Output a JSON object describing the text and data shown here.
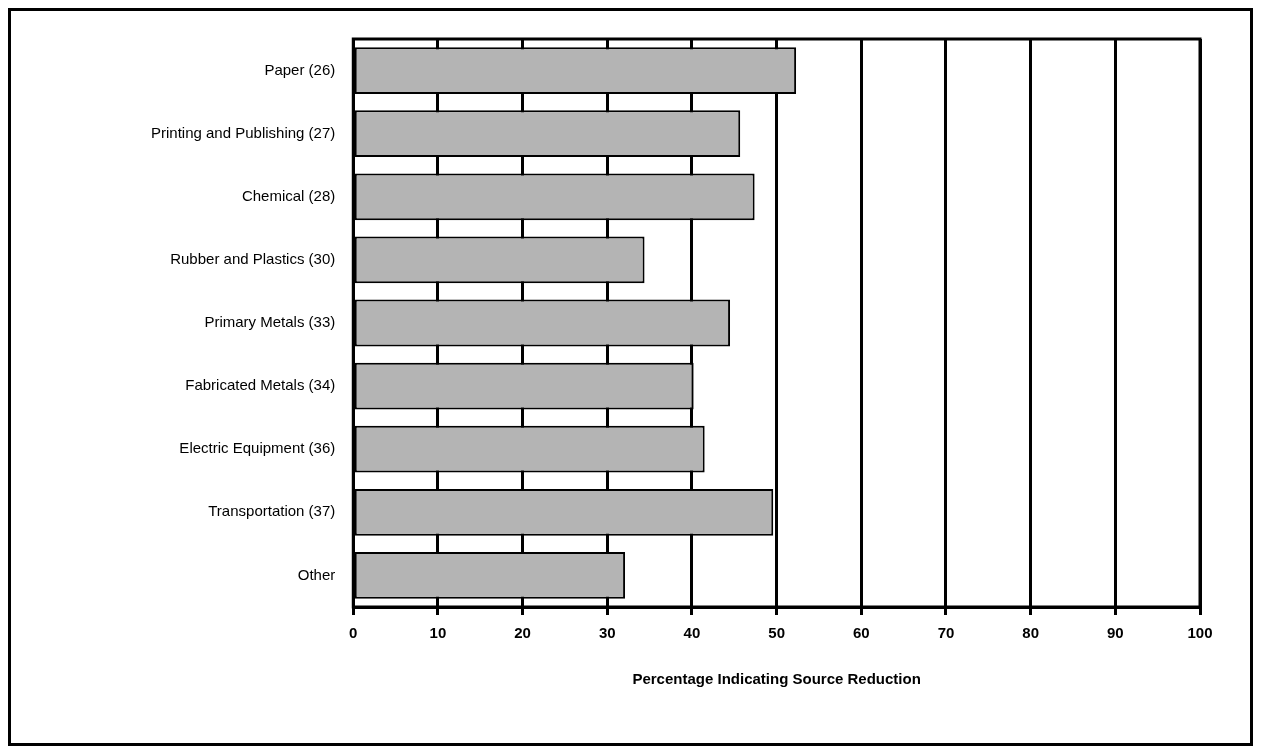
{
  "chart_data": {
    "type": "bar",
    "orientation": "horizontal",
    "categories": [
      "Paper (26)",
      "Printing and Publishing (27)",
      "Chemical (28)",
      "Rubber and Plastics (30)",
      "Primary Metals (33)",
      "Fabricated Metals (34)",
      "Electric Equipment (36)",
      "Transportation (37)",
      "Other"
    ],
    "values": [
      52.3,
      45.7,
      47.4,
      34.4,
      44.5,
      40.2,
      41.5,
      49.6,
      32.1
    ],
    "color": "#b4b4b4",
    "xlabel": "Percentage Indicating Source Reduction",
    "xlim": [
      0,
      100
    ],
    "xticks": [
      0,
      10,
      20,
      30,
      40,
      50,
      60,
      70,
      80,
      90,
      100
    ],
    "grid": "x",
    "legend": false
  }
}
